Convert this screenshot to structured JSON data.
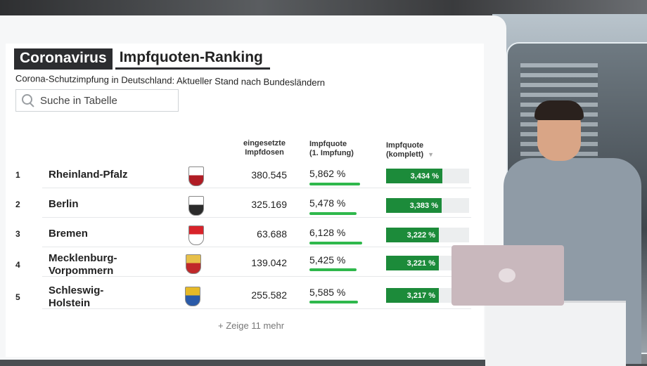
{
  "header": {
    "badge": "Coronavirus",
    "title": "Impfquoten-Ranking",
    "subtitle": "Corona-Schutzimpfung in Deutschland: Aktueller Stand nach Bundesländern"
  },
  "search": {
    "placeholder": "Suche in Tabelle"
  },
  "columns": {
    "doses": [
      "eingesetzte",
      "Impfdosen"
    ],
    "first": [
      "Impfquote",
      "(1. Impfung)"
    ],
    "full": [
      "Impfquote",
      "(komplett)"
    ]
  },
  "rows": [
    {
      "rank": "1",
      "state": [
        "Rheinland-Pfalz"
      ],
      "doses": "380.545",
      "first_label": "5,862 %",
      "first_value": 5.862,
      "full_label": "3,434 %",
      "full_value": 3.434,
      "crest": "rheinland-pfalz-crest-icon"
    },
    {
      "rank": "2",
      "state": [
        "Berlin"
      ],
      "doses": "325.169",
      "first_label": "5,478 %",
      "first_value": 5.478,
      "full_label": "3,383 %",
      "full_value": 3.383,
      "crest": "berlin-bear-crest-icon"
    },
    {
      "rank": "3",
      "state": [
        "Bremen"
      ],
      "doses": "63.688",
      "first_label": "6,128 %",
      "first_value": 6.128,
      "full_label": "3,222 %",
      "full_value": 3.222,
      "crest": "bremen-key-crest-icon"
    },
    {
      "rank": "4",
      "state": [
        "Mecklenburg-",
        "Vorpommern"
      ],
      "doses": "139.042",
      "first_label": "5,425 %",
      "first_value": 5.425,
      "full_label": "3,221 %",
      "full_value": 3.221,
      "crest": "mecklenburg-vorpommern-crest-icon"
    },
    {
      "rank": "5",
      "state": [
        "Schleswig-",
        "Holstein"
      ],
      "doses": "255.582",
      "first_label": "5,585 %",
      "first_value": 5.585,
      "full_label": "3,217 %",
      "full_value": 3.217,
      "crest": "schleswig-holstein-crest-icon"
    }
  ],
  "more_label": "+ Zeige 11 mehr",
  "colors": {
    "first_bar": "#2fb84c",
    "full_bar": "#1c8b3a",
    "badge_bg": "#2c2d30"
  }
}
